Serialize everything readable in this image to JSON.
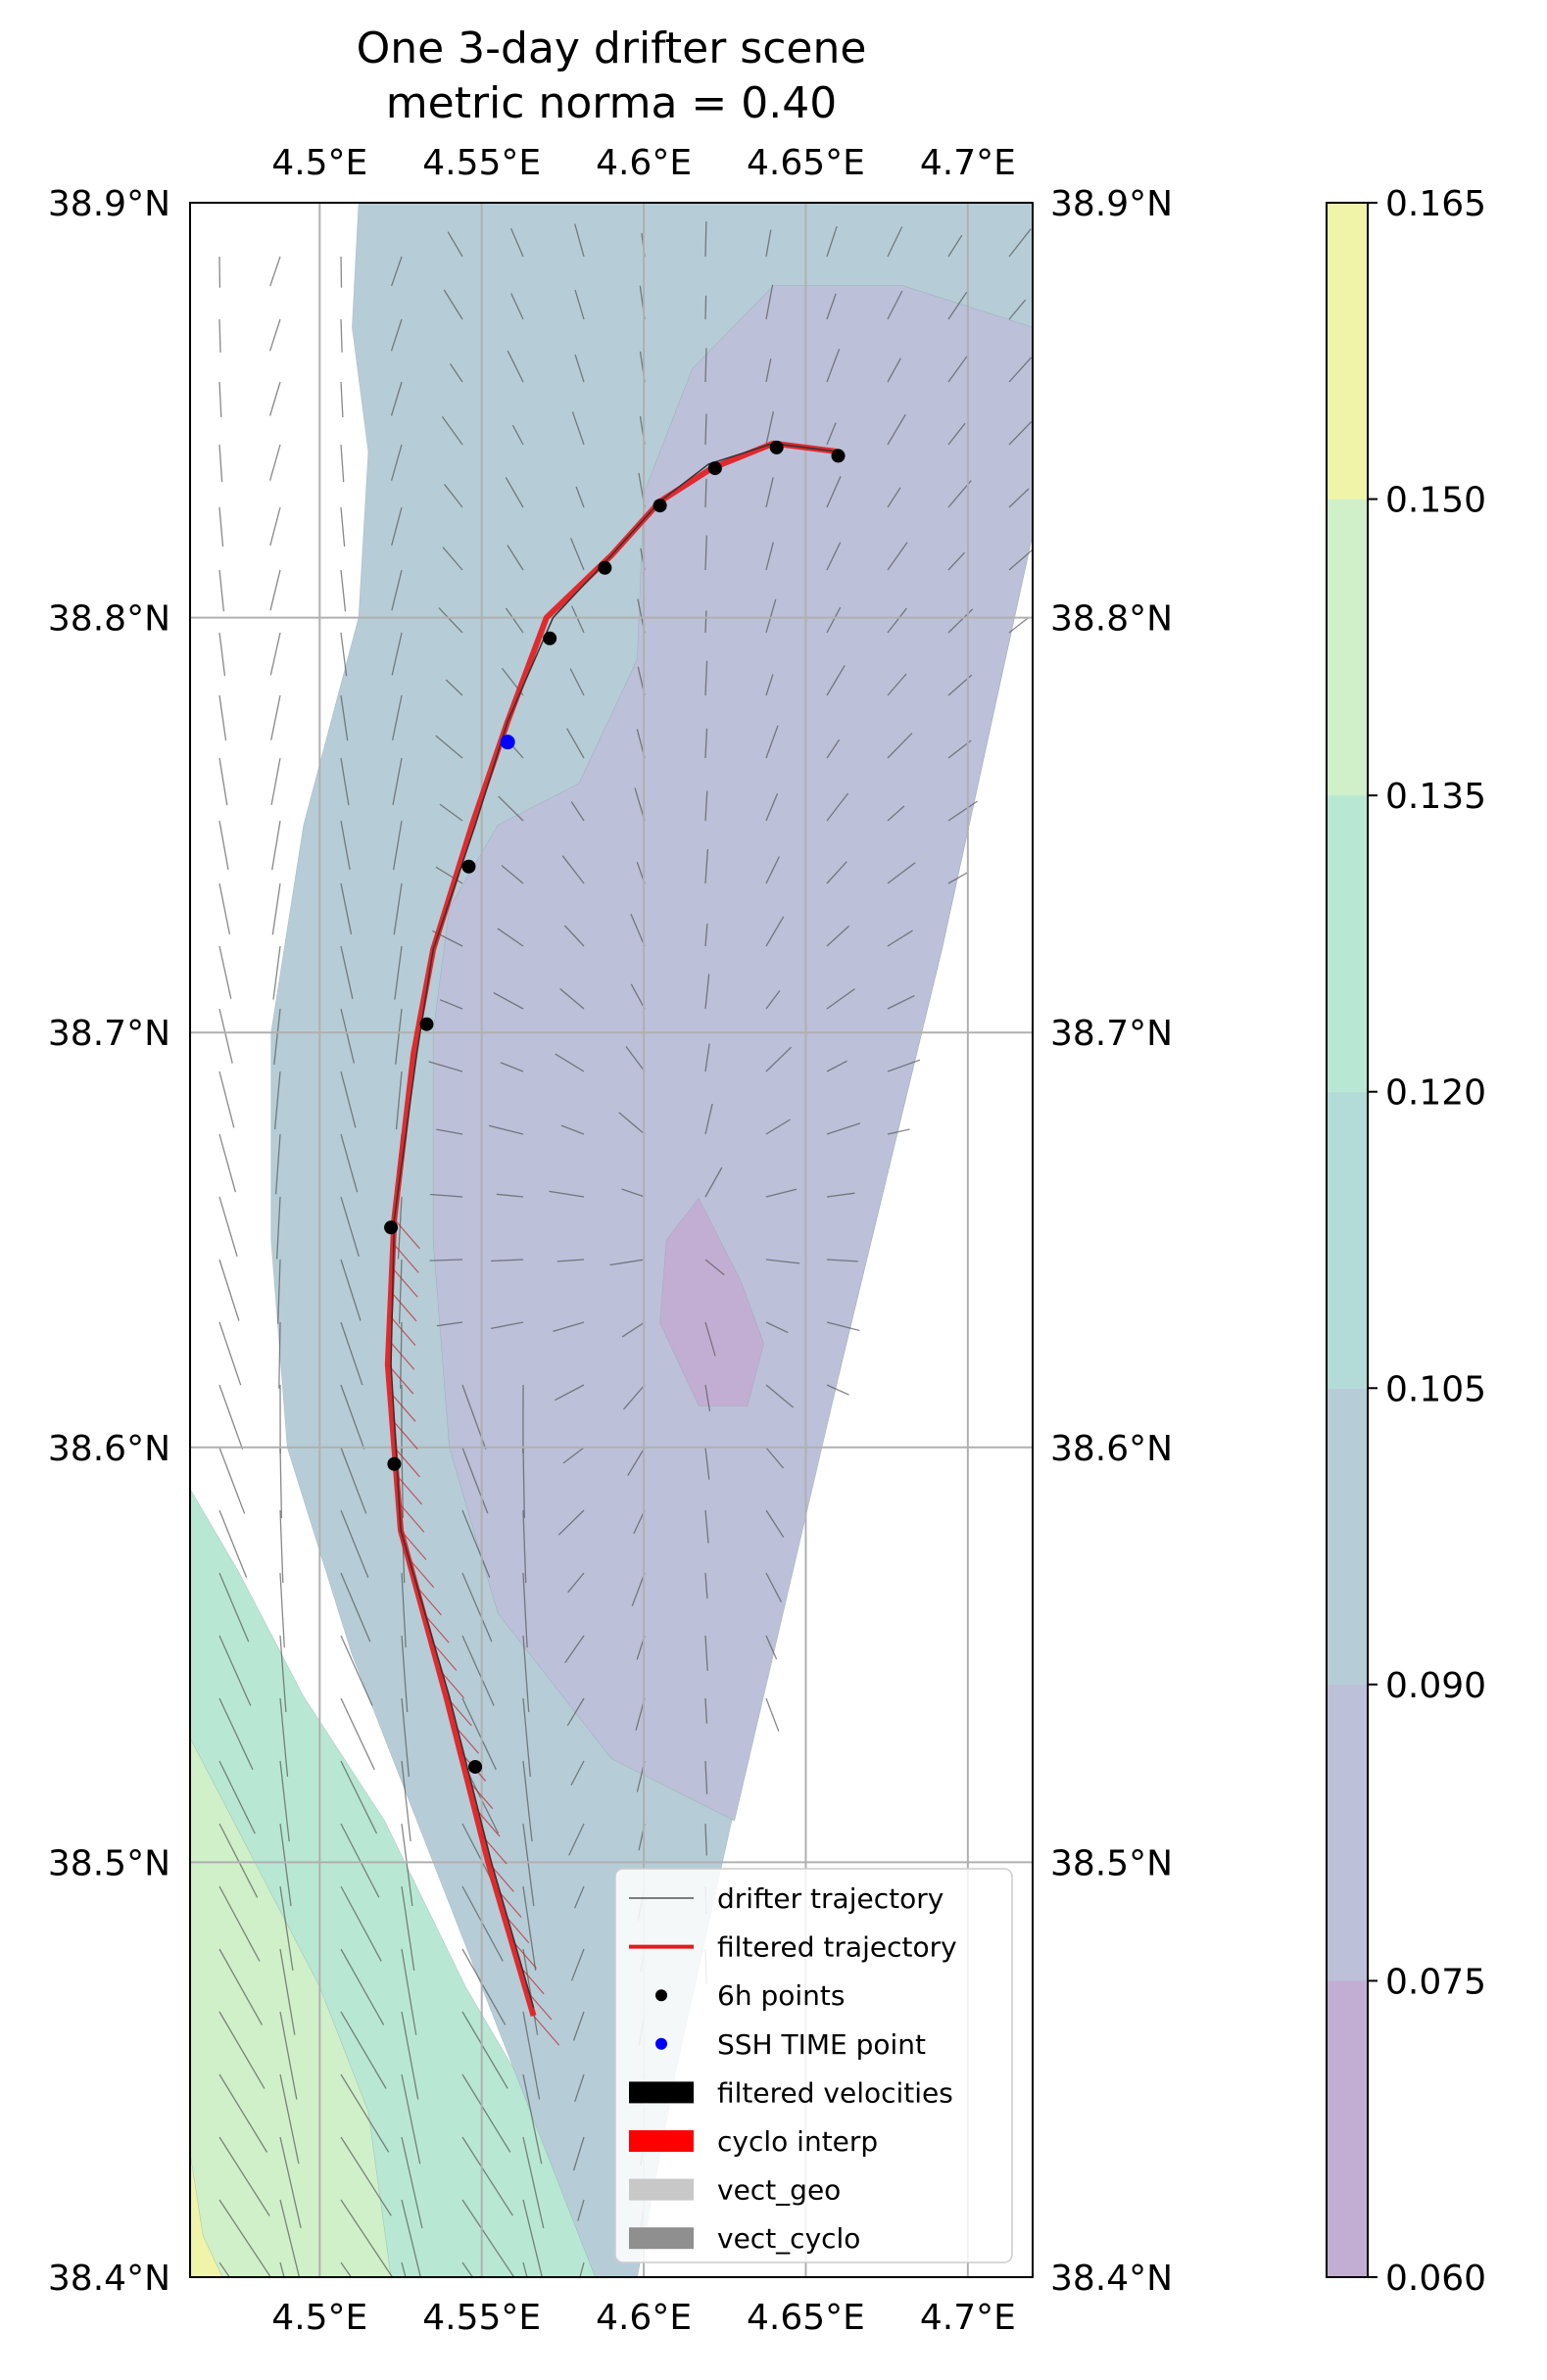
{
  "chart_data": {
    "type": "map",
    "title_lines": [
      "One 3-day drifter scene",
      "metric norma = 0.40"
    ],
    "xlim": [
      4.46,
      4.72
    ],
    "ylim": [
      38.4,
      38.9
    ],
    "x_ticks": [
      {
        "value": 4.5,
        "label": "4.5°E"
      },
      {
        "value": 4.55,
        "label": "4.55°E"
      },
      {
        "value": 4.6,
        "label": "4.6°E"
      },
      {
        "value": 4.65,
        "label": "4.65°E"
      },
      {
        "value": 4.7,
        "label": "4.7°E"
      }
    ],
    "y_ticks": [
      {
        "value": 38.9,
        "label": "38.9°N"
      },
      {
        "value": 38.8,
        "label": "38.8°N"
      },
      {
        "value": 38.7,
        "label": "38.7°N"
      },
      {
        "value": 38.6,
        "label": "38.6°N"
      },
      {
        "value": 38.5,
        "label": "38.5°N"
      },
      {
        "value": 38.4,
        "label": "38.4°N"
      }
    ],
    "grid": true,
    "colorbar": {
      "levels": [
        "0.060",
        "0.075",
        "0.090",
        "0.105",
        "0.120",
        "0.135",
        "0.150",
        "0.165"
      ],
      "colors": [
        "#c3aed3",
        "#bcc0d9",
        "#b6cdd7",
        "#b3dcd8",
        "#b8e8d3",
        "#cff0c9",
        "#eff4a9"
      ]
    },
    "contours": [
      {
        "level": "0.120-0.135",
        "color": "#b8e8d3",
        "points": [
          [
            4.46,
            38.59
          ],
          [
            4.475,
            38.57
          ],
          [
            4.495,
            38.54
          ],
          [
            4.52,
            38.51
          ],
          [
            4.545,
            38.47
          ],
          [
            4.575,
            38.43
          ],
          [
            4.593,
            38.4
          ],
          [
            4.46,
            38.4
          ]
        ]
      },
      {
        "level": "0.135-0.150",
        "color": "#cff0c9",
        "points": [
          [
            4.46,
            38.53
          ],
          [
            4.48,
            38.5
          ],
          [
            4.5,
            38.47
          ],
          [
            4.515,
            38.44
          ],
          [
            4.522,
            38.4
          ],
          [
            4.46,
            38.4
          ]
        ]
      },
      {
        "level": "0.150-0.165",
        "color": "#eff4a9",
        "points": [
          [
            4.46,
            38.43
          ],
          [
            4.464,
            38.41
          ],
          [
            4.47,
            38.4
          ],
          [
            4.46,
            38.4
          ]
        ]
      },
      {
        "level": "0.090-0.105",
        "color": "#b6cdd7",
        "points": [
          [
            4.46,
            38.9
          ],
          [
            4.72,
            38.9
          ],
          [
            4.72,
            38.82
          ],
          [
            4.692,
            38.72
          ],
          [
            4.661,
            38.62
          ],
          [
            4.63,
            38.52
          ],
          [
            4.61,
            38.45
          ],
          [
            4.598,
            38.4
          ],
          [
            4.585,
            38.4
          ],
          [
            4.565,
            38.44
          ],
          [
            4.54,
            38.49
          ],
          [
            4.51,
            38.55
          ],
          [
            4.49,
            38.6
          ],
          [
            4.485,
            38.65
          ],
          [
            4.485,
            38.7
          ],
          [
            4.495,
            38.75
          ],
          [
            4.512,
            38.8
          ],
          [
            4.515,
            38.84
          ],
          [
            4.51,
            38.87
          ],
          [
            4.512,
            38.9
          ],
          [
            4.46,
            38.9
          ]
        ]
      },
      {
        "level": "0.075-0.090",
        "color": "#bcc0d9",
        "points": [
          [
            4.64,
            38.88
          ],
          [
            4.68,
            38.88
          ],
          [
            4.72,
            38.87
          ],
          [
            4.72,
            38.82
          ],
          [
            4.692,
            38.72
          ],
          [
            4.661,
            38.62
          ],
          [
            4.628,
            38.51
          ],
          [
            4.59,
            38.525
          ],
          [
            4.555,
            38.56
          ],
          [
            4.54,
            38.6
          ],
          [
            4.535,
            38.65
          ],
          [
            4.535,
            38.7
          ],
          [
            4.54,
            38.73
          ],
          [
            4.555,
            38.75
          ],
          [
            4.58,
            38.76
          ],
          [
            4.598,
            38.79
          ],
          [
            4.6,
            38.83
          ],
          [
            4.615,
            38.86
          ],
          [
            4.64,
            38.88
          ]
        ]
      },
      {
        "level": "0.060-0.075",
        "color": "#c3aed3",
        "points": [
          [
            4.617,
            38.66
          ],
          [
            4.63,
            38.64
          ],
          [
            4.637,
            38.625
          ],
          [
            4.632,
            38.61
          ],
          [
            4.617,
            38.61
          ],
          [
            4.605,
            38.63
          ],
          [
            4.607,
            38.65
          ],
          [
            4.617,
            38.66
          ]
        ]
      }
    ],
    "drifter_trajectory": [
      [
        4.566,
        38.465
      ],
      [
        4.553,
        38.5
      ],
      [
        4.54,
        38.54
      ],
      [
        4.525,
        38.58
      ],
      [
        4.522,
        38.62
      ],
      [
        4.523,
        38.655
      ],
      [
        4.53,
        38.695
      ],
      [
        4.535,
        38.72
      ],
      [
        4.548,
        38.75
      ],
      [
        4.558,
        38.775
      ],
      [
        4.572,
        38.8
      ],
      [
        4.59,
        38.815
      ],
      [
        4.605,
        38.828
      ],
      [
        4.62,
        38.837
      ],
      [
        4.64,
        38.842
      ],
      [
        4.66,
        38.84
      ]
    ],
    "filtered_trajectory": [
      [
        4.566,
        38.463
      ],
      [
        4.552,
        38.5
      ],
      [
        4.539,
        38.54
      ],
      [
        4.525,
        38.58
      ],
      [
        4.521,
        38.62
      ],
      [
        4.523,
        38.655
      ],
      [
        4.529,
        38.695
      ],
      [
        4.535,
        38.72
      ],
      [
        4.547,
        38.75
      ],
      [
        4.558,
        38.775
      ],
      [
        4.57,
        38.8
      ],
      [
        4.59,
        38.815
      ],
      [
        4.605,
        38.828
      ],
      [
        4.621,
        38.836
      ],
      [
        4.64,
        38.842
      ],
      [
        4.66,
        38.84
      ]
    ],
    "points_6h": [
      [
        4.548,
        38.523
      ],
      [
        4.523,
        38.596
      ],
      [
        4.522,
        38.653
      ],
      [
        4.533,
        38.702
      ],
      [
        4.546,
        38.74
      ],
      [
        4.571,
        38.795
      ],
      [
        4.588,
        38.812
      ],
      [
        4.605,
        38.827
      ],
      [
        4.622,
        38.836
      ],
      [
        4.641,
        38.841
      ],
      [
        4.66,
        38.839
      ]
    ],
    "ssh_time_point": [
      4.558,
      38.77
    ],
    "legend": {
      "position": "lower-right",
      "entries": [
        {
          "label": "drifter trajectory",
          "marker": "thin-line",
          "color": "#555555"
        },
        {
          "label": "filtered trajectory",
          "marker": "line",
          "color": "#e41a1c"
        },
        {
          "label": "6h points",
          "marker": "dot",
          "color": "#000000"
        },
        {
          "label": "SSH TIME point",
          "marker": "dot",
          "color": "#0000ff"
        },
        {
          "label": "filtered velocities",
          "marker": "patch",
          "color": "#000000"
        },
        {
          "label": "cyclo interp",
          "marker": "patch",
          "color": "#ff0000"
        },
        {
          "label": "vect_geo",
          "marker": "patch",
          "color": "#c8c8c8"
        },
        {
          "label": "vect_cyclo",
          "marker": "patch",
          "color": "#8f8f8f"
        }
      ]
    }
  }
}
